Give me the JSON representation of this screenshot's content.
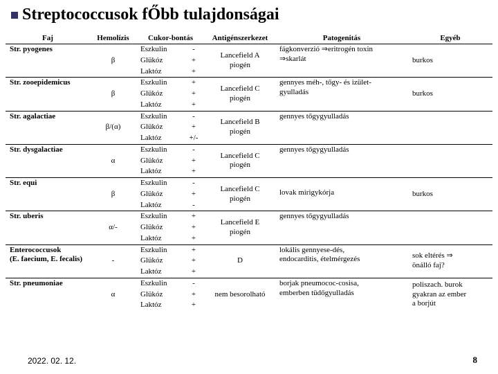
{
  "title": "Streptococcusok fŐbb tulajdonságai",
  "footer": {
    "date": "2022. 02. 12.",
    "page": "8"
  },
  "headers": {
    "faj": "Faj",
    "hemo": "Hemolízis",
    "cukor": "Cukor-bontás",
    "antigen": "Antigénszerkezet",
    "patho": "Patogenitás",
    "other": "Egyéb"
  },
  "sugars": {
    "s1": "Eszkulin",
    "s2": "Glükóz",
    "s3": "Laktóz"
  },
  "rows": [
    {
      "species": "Str. pyogenes",
      "hemo": "β",
      "signs": [
        "-",
        "+",
        "+"
      ],
      "antigen_l1": "Lancefield A",
      "antigen_l2": "piogén",
      "patho_l1": "fágkonverzió ⇒eritrogén toxin",
      "patho_l2": "⇒skarlát",
      "other": "burkos"
    },
    {
      "species": "Str. zooepidemicus",
      "hemo": "β",
      "signs": [
        "+",
        "+",
        "+"
      ],
      "antigen_l1": "Lancefield C",
      "antigen_l2": "piogén",
      "patho_l1": "gennyes méh-, tőgy- és izület-",
      "patho_l2": "gyulladás",
      "other": "burkos"
    },
    {
      "species": "Str. agalactiae",
      "hemo": "β/(α)",
      "signs": [
        "-",
        "+",
        "+/-"
      ],
      "antigen_l1": "Lancefield B",
      "antigen_l2": "piogén",
      "patho_l1": "gennyes tőgygyulladás",
      "patho_l2": "",
      "other": ""
    },
    {
      "species": "Str. dysgalactiae",
      "hemo": "α",
      "signs": [
        "-",
        "+",
        "+"
      ],
      "antigen_l1": "Lancefield C",
      "antigen_l2": "piogén",
      "patho_l1": "gennyes tőgygyulladás",
      "patho_l2": "",
      "other": ""
    },
    {
      "species": "Str. equi",
      "hemo": "β",
      "signs": [
        "-",
        "+",
        "-"
      ],
      "antigen_l1": "Lancefield C",
      "antigen_l2": "piogén",
      "patho_l1": "",
      "patho_l2": "lovak mirigykórja",
      "other": "burkos"
    },
    {
      "species": "Str. uberis",
      "hemo": "α/-",
      "signs": [
        "+",
        "+",
        "+"
      ],
      "antigen_l1": "Lancefield E",
      "antigen_l2": "piogén",
      "patho_l1": "gennyes tőgygyulladás",
      "patho_l2": "",
      "other": ""
    },
    {
      "species": "Enterococcusok",
      "species_l2": "(E. faecium, E. fecalis)",
      "hemo": "-",
      "signs": [
        "+",
        "+",
        "+"
      ],
      "antigen_l1": "",
      "antigen_l2": "D",
      "patho_l1": "lokális gennyese-dés,",
      "patho_l2": "endocarditis, ételmérgezés",
      "other_l1": "sok eltérés ⇒",
      "other_l2": "önálló faj?"
    },
    {
      "species": "Str. pneumoniae",
      "hemo": "α",
      "signs": [
        "-",
        "+",
        "+"
      ],
      "antigen_l1": "",
      "antigen_l2": "nem besorolható",
      "patho_l1": "borjak pneumococ-cosisa,",
      "patho_l2": "emberben tüdőgyulladás",
      "other_l1": "poliszach. burok",
      "other_l2": "gyakran az ember",
      "other_l3": "a borjút"
    }
  ]
}
